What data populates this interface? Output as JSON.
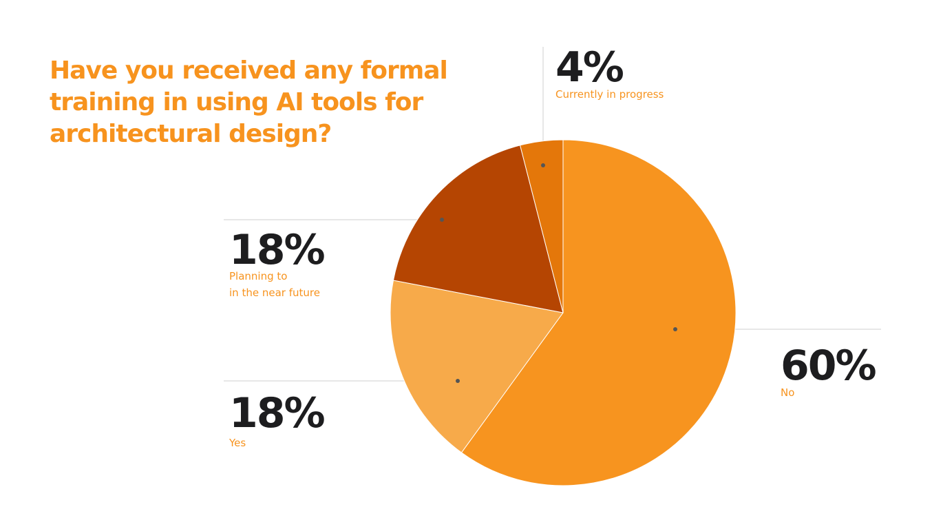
{
  "title": "Have you received any formal training in using AI tools for architectural design?",
  "colors": {
    "title": "#f7931e",
    "label": "#f7931e",
    "percent_text": "#1d1d1f",
    "leader_line": "#cfcfcf",
    "leader_dot": "#555555"
  },
  "chart_data": {
    "type": "pie",
    "title": "Have you received any formal training in using AI tools for architectural design?",
    "start": "12 o'clock",
    "direction": "clockwise",
    "slices": [
      {
        "label": "No",
        "pct_text": "60%",
        "value": 60,
        "color": "#f7941f"
      },
      {
        "label": "Yes",
        "pct_text": "18%",
        "value": 18,
        "color": "#f7aa4a"
      },
      {
        "label": "Planning to\nin the near future",
        "pct_text": "18%",
        "value": 18,
        "color": "#b54502"
      },
      {
        "label": "Currently in progress",
        "pct_text": "4%",
        "value": 4,
        "color": "#e4770a"
      }
    ]
  }
}
